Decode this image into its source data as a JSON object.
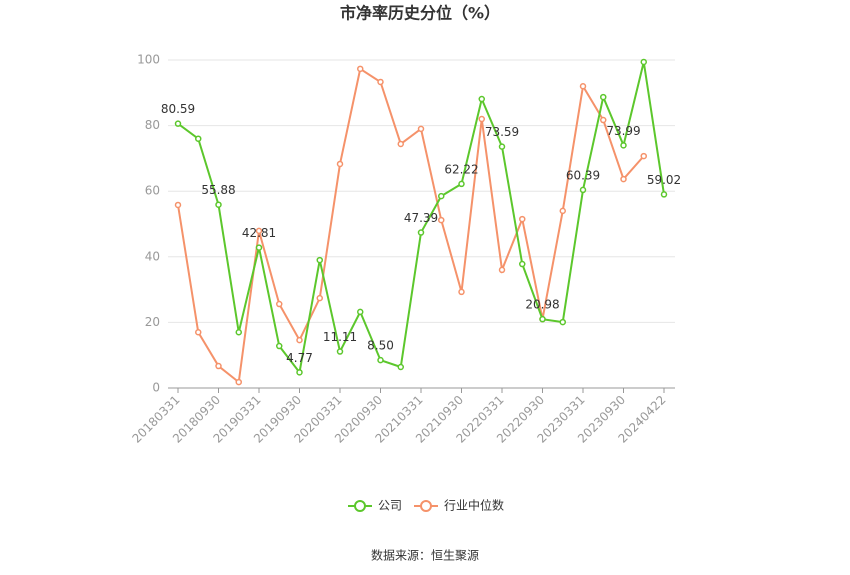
{
  "chart_data": {
    "type": "line",
    "title": "市净率历史分位（%）",
    "categories": [
      "20180331",
      null,
      "20180930",
      null,
      "20190331",
      null,
      "20190930",
      null,
      "20200331",
      null,
      "20200930",
      null,
      "20210331",
      null,
      "20210930",
      null,
      "20220331",
      null,
      "20220930",
      null,
      "20230331",
      null,
      "20230930",
      null,
      "20240422"
    ],
    "series": [
      {
        "name": "公司",
        "color": "#5cc72c",
        "values": [
          80.59,
          76,
          55.88,
          17,
          42.81,
          12.8,
          4.77,
          39,
          11.11,
          23.2,
          8.5,
          6.4,
          47.39,
          58.5,
          62.22,
          88.1,
          73.59,
          37.8,
          20.98,
          20.1,
          60.39,
          88.7,
          73.99,
          99.4,
          59.02
        ],
        "value_labels": [
          "80.59",
          null,
          "55.88",
          null,
          "42.81",
          null,
          "4.77",
          null,
          "11.11",
          null,
          "8.50",
          null,
          "47.39",
          null,
          "62.22",
          null,
          "73.59",
          null,
          "20.98",
          null,
          "60.39",
          null,
          "73.99",
          null,
          "59.02"
        ]
      },
      {
        "name": "行业中位数",
        "color": "#f5926a",
        "values": [
          55.8,
          17,
          6.7,
          1.8,
          47.9,
          25.6,
          14.6,
          27.4,
          68.3,
          97.3,
          93.3,
          74.4,
          79,
          51.2,
          29.3,
          82,
          36,
          51.5,
          21,
          54,
          92,
          81.7,
          63.7,
          70.7,
          null
        ]
      }
    ],
    "ylim": [
      0,
      100
    ],
    "yticks": [
      0,
      20,
      40,
      60,
      80,
      100
    ],
    "grid": true,
    "source": "数据来源：恒生聚源"
  }
}
